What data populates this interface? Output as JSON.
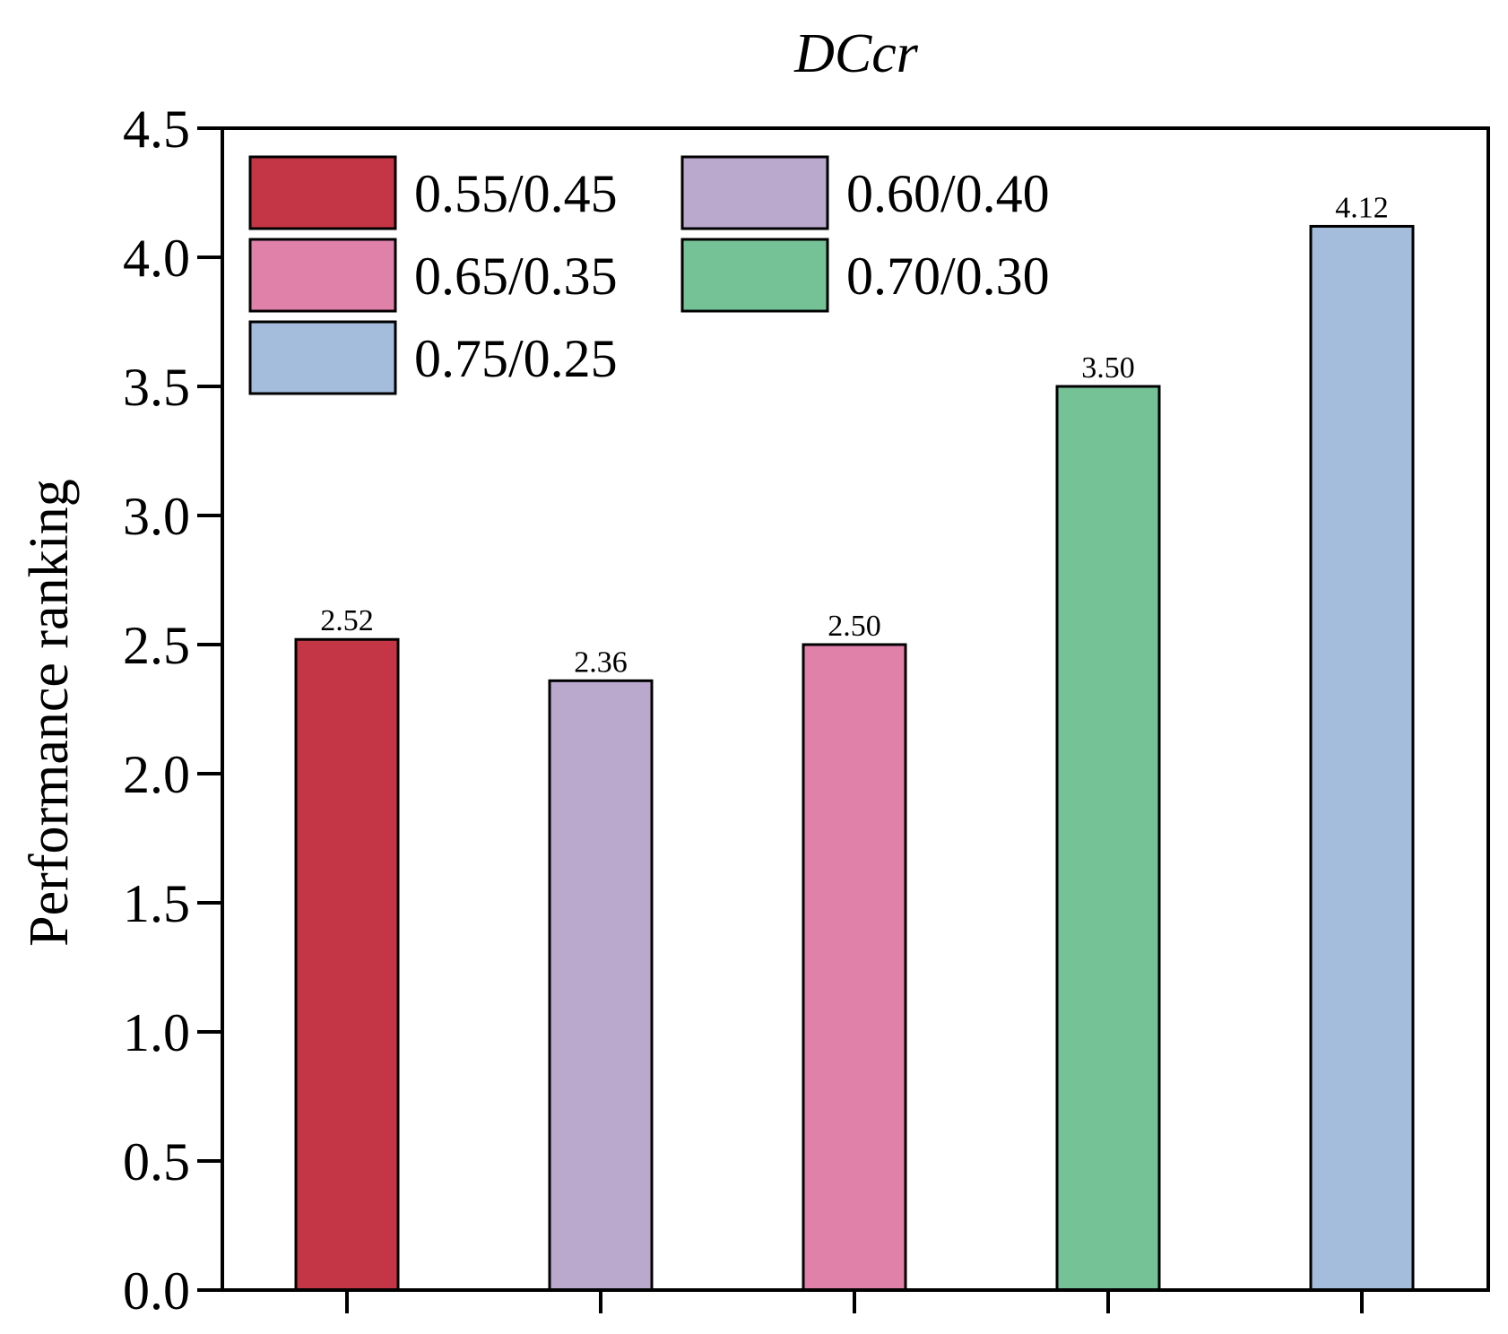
{
  "chart_data": {
    "type": "bar",
    "title": "DCcr",
    "xlabel": "",
    "ylabel": "Performance ranking",
    "ylim": [
      0,
      4.5
    ],
    "yticks": [
      0.0,
      0.5,
      1.0,
      1.5,
      2.0,
      2.5,
      3.0,
      3.5,
      4.0,
      4.5
    ],
    "ytick_labels": [
      "0.0",
      "0.5",
      "1.0",
      "1.5",
      "2.0",
      "2.5",
      "3.0",
      "3.5",
      "4.0",
      "4.5"
    ],
    "grid": false,
    "legend_position": "top-left",
    "legend_columns": 2,
    "categories": [
      "0.55/0.45",
      "0.60/0.40",
      "0.65/0.35",
      "0.70/0.30",
      "0.75/0.25"
    ],
    "values": [
      2.52,
      2.36,
      2.5,
      3.5,
      4.12
    ],
    "value_labels": [
      "2.52",
      "2.36",
      "2.50",
      "3.50",
      "4.12"
    ],
    "colors": [
      "#c43646",
      "#baa8cd",
      "#e081aa",
      "#76c297",
      "#a4bddc"
    ],
    "series": [
      {
        "name": "0.55/0.45",
        "value": 2.52,
        "label": "2.52",
        "color": "#c43646"
      },
      {
        "name": "0.60/0.40",
        "value": 2.36,
        "label": "2.36",
        "color": "#baa8cd"
      },
      {
        "name": "0.65/0.35",
        "value": 2.5,
        "label": "2.50",
        "color": "#e081aa"
      },
      {
        "name": "0.70/0.30",
        "value": 3.5,
        "label": "3.50",
        "color": "#76c297"
      },
      {
        "name": "0.75/0.25",
        "value": 4.12,
        "label": "4.12",
        "color": "#a4bddc"
      }
    ]
  }
}
